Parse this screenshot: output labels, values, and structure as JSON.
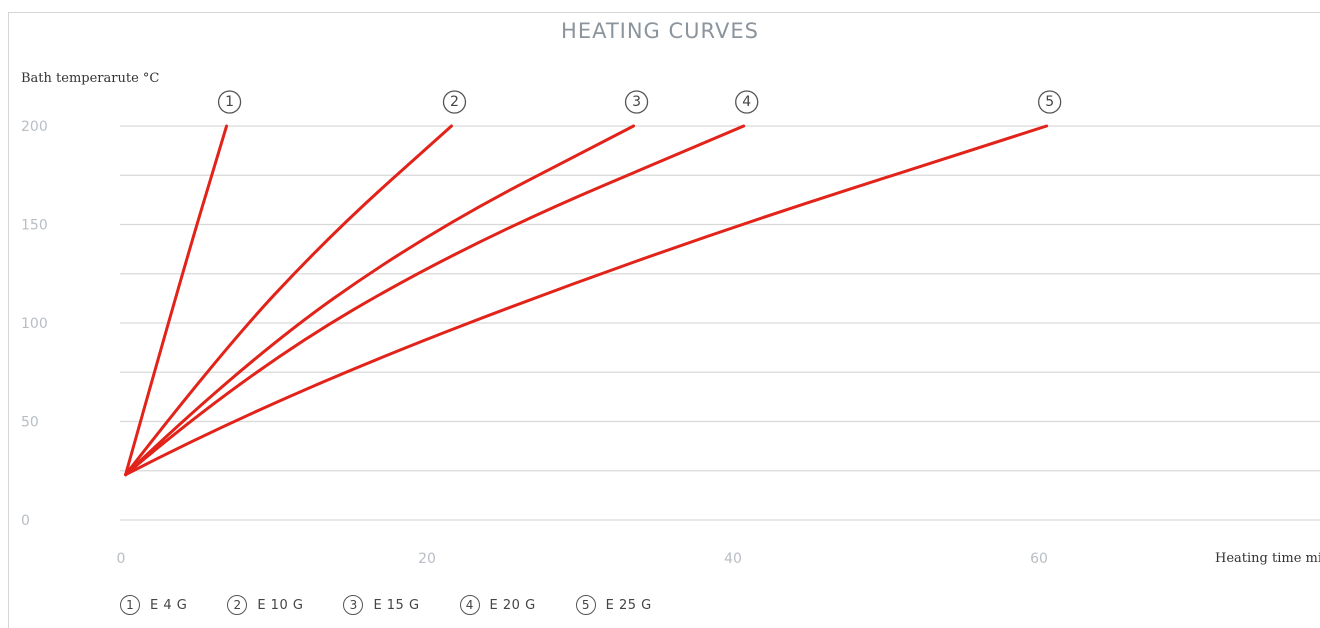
{
  "chart_data": {
    "type": "line",
    "title": "HEATING CURVES",
    "ylabel": "Bath temperarute °C",
    "xlabel": "Heating time min",
    "xlim": [
      0,
      70
    ],
    "ylim": [
      0,
      200
    ],
    "y_ticks": [
      0,
      50,
      100,
      150,
      200
    ],
    "x_ticks": [
      0,
      20,
      40,
      60
    ],
    "grid": true,
    "legend_position": "bottom-left",
    "line_color": "#e2231a",
    "series": [
      {
        "marker": "1",
        "name": "E 4 G",
        "x": [
          0.3,
          3.8,
          6.9
        ],
        "y": [
          23,
          120,
          200
        ]
      },
      {
        "marker": "2",
        "name": "E 10 G",
        "x": [
          0.3,
          6.5,
          13.7,
          21.6
        ],
        "y": [
          23,
          85,
          145,
          200
        ]
      },
      {
        "marker": "3",
        "name": "E 15 G",
        "x": [
          0.3,
          8.0,
          19.8,
          33.5
        ],
        "y": [
          23,
          80,
          145,
          200
        ]
      },
      {
        "marker": "4",
        "name": "E 20 G",
        "x": [
          0.3,
          8.0,
          22.5,
          40.7
        ],
        "y": [
          23,
          74,
          140,
          200
        ]
      },
      {
        "marker": "5",
        "name": "E 25 G",
        "x": [
          0.3,
          10.0,
          34.8,
          60.5
        ],
        "y": [
          23,
          62,
          136,
          200
        ]
      }
    ]
  }
}
